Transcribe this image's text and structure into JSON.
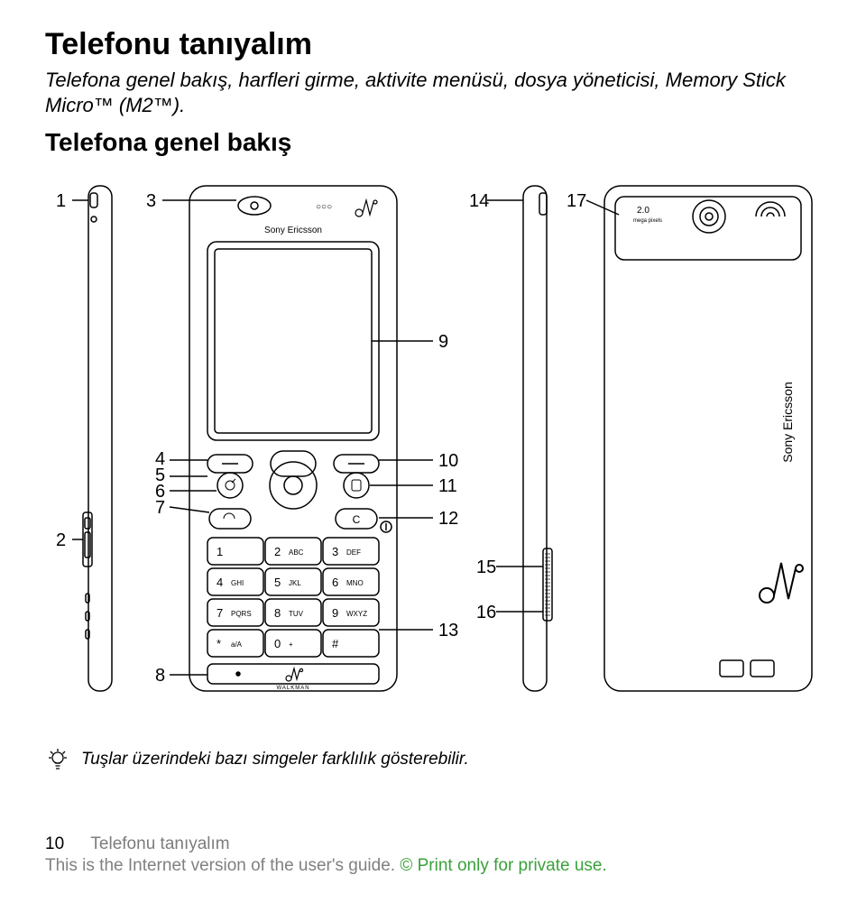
{
  "heading": "Telefonu tanıyalım",
  "intro": "Telefona genel bakış, harfleri girme, aktivite menüsü, dosya yöneticisi, Memory Stick Micro™ (M2™).",
  "subheading": "Telefona genel bakış",
  "callouts": {
    "n1": "1",
    "n2": "2",
    "n3": "3",
    "n4": "4",
    "n5": "5",
    "n6": "6",
    "n7": "7",
    "n8": "8",
    "n9": "9",
    "n10": "10",
    "n11": "11",
    "n12": "12",
    "n13": "13",
    "n14": "14",
    "n15": "15",
    "n16": "16",
    "n17": "17"
  },
  "tip": "Tuşlar üzerindeki bazı simgeler farklılık gösterebilir.",
  "footer": {
    "page": "10",
    "section": "Telefonu tanıyalım",
    "disclaimer_a": "This is the Internet version of the user's guide. ",
    "disclaimer_b": "© Print only for private use."
  },
  "style": {
    "stroke": "#000000",
    "stroke_width": 1.5,
    "bg": "#ffffff",
    "footer_gray": "#808080",
    "footer_section_gray": "#7c7c7c",
    "footer_green": "#3aa13a"
  },
  "phone": {
    "brand": "Sony Ericsson",
    "walkman_label": "WALKMAN",
    "vertical_brand": "Sony Ericsson",
    "keypad": [
      {
        "num": "1",
        "sub": ""
      },
      {
        "num": "2",
        "sub": "ABC"
      },
      {
        "num": "3",
        "sub": "DEF"
      },
      {
        "num": "4",
        "sub": "GHI"
      },
      {
        "num": "5",
        "sub": "JKL"
      },
      {
        "num": "6",
        "sub": "MNO"
      },
      {
        "num": "7",
        "sub": "PQRS"
      },
      {
        "num": "8",
        "sub": "TUV"
      },
      {
        "num": "9",
        "sub": "WXYZ"
      },
      {
        "num": "*",
        "sub": "a/A"
      },
      {
        "num": "0",
        "sub": "+"
      },
      {
        "num": "#",
        "sub": ""
      }
    ]
  }
}
